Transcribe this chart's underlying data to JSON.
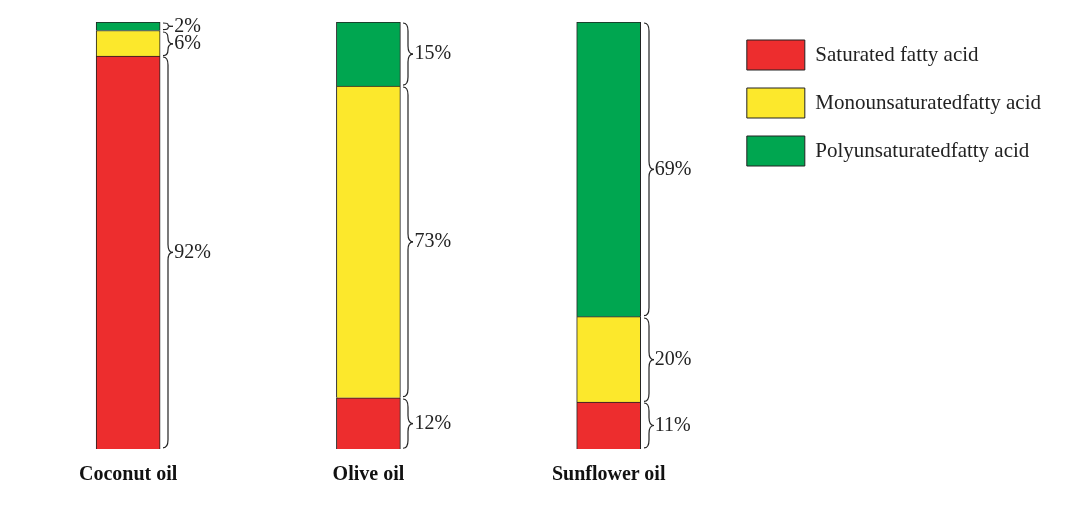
{
  "chart_data": {
    "type": "bar",
    "stacked": true,
    "categories": [
      "Coconut oil",
      "Olive oil",
      "Sunflower oil"
    ],
    "series": [
      {
        "name": "Saturated fatty acid",
        "color": "#ed2d2e",
        "values": [
          92,
          12,
          11
        ],
        "value_labels": [
          "92%",
          "12%",
          "11%"
        ]
      },
      {
        "name": "Monounsaturatedfatty acid",
        "color": "#fce82c",
        "values": [
          6,
          73,
          20
        ],
        "value_labels": [
          "6%",
          "73%",
          "20%"
        ]
      },
      {
        "name": "Polyunsaturatedfatty acid",
        "color": "#00a650",
        "values": [
          2,
          15,
          69
        ],
        "value_labels": [
          "2%",
          "15%",
          "69%"
        ]
      }
    ],
    "legend": "top right",
    "grid": false,
    "tick_labels": "x"
  }
}
